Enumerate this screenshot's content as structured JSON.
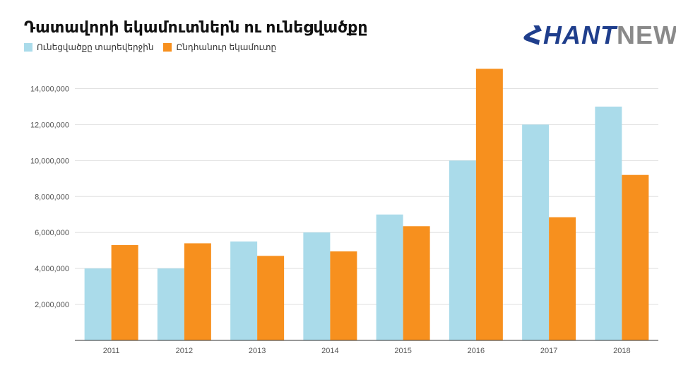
{
  "title": "Դատավորի եկամուտներն ու ունեցվածքը",
  "logo": {
    "part1": "ՀHANT",
    "part2": "NEWS"
  },
  "colors": {
    "series1": "#aadbea",
    "series2": "#f7901e",
    "grid": "#e0e0e0",
    "axis": "#333333"
  },
  "chart_data": {
    "type": "bar",
    "categories": [
      "2011",
      "2012",
      "2013",
      "2014",
      "2015",
      "2016",
      "2017",
      "2018"
    ],
    "series": [
      {
        "name": "Ունեցվածքը տարեվերջին",
        "values": [
          4000000,
          4000000,
          5500000,
          6000000,
          7000000,
          10000000,
          12000000,
          13000000
        ]
      },
      {
        "name": "Ընդհանուր եկամուտը",
        "values": [
          5300000,
          5400000,
          4700000,
          4950000,
          6350000,
          15100000,
          6850000,
          9200000
        ]
      }
    ],
    "ylim": [
      0,
      15000000
    ],
    "yticks": [
      "2,000,000",
      "4,000,000",
      "6,000,000",
      "8,000,000",
      "10,000,000",
      "12,000,000",
      "14,000,000"
    ],
    "ytick_values": [
      2000000,
      4000000,
      6000000,
      8000000,
      10000000,
      12000000,
      14000000
    ],
    "grid": true,
    "legend": "top-left"
  }
}
